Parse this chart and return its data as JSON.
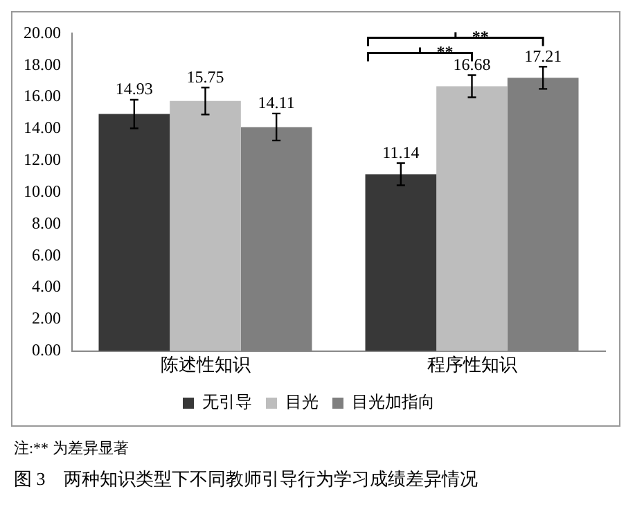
{
  "chart_data": {
    "type": "bar",
    "categories": [
      "陈述性知识",
      "程序性知识"
    ],
    "series": [
      {
        "name": "无引导",
        "color": "#383838",
        "values": [
          14.93,
          11.14
        ],
        "errors": [
          0.9,
          0.7
        ]
      },
      {
        "name": "目光",
        "color": "#bdbdbd",
        "values": [
          15.75,
          16.68
        ],
        "errors": [
          0.85,
          0.7
        ]
      },
      {
        "name": "目光加指向",
        "color": "#7f7f7f",
        "values": [
          14.11,
          17.21
        ],
        "errors": [
          0.85,
          0.7
        ]
      }
    ],
    "ylim": [
      0,
      20
    ],
    "yticks": [
      {
        "value": 0,
        "label": "0.00"
      },
      {
        "value": 2,
        "label": "2.00"
      },
      {
        "value": 4,
        "label": "4.00"
      },
      {
        "value": 6,
        "label": "6.00"
      },
      {
        "value": 8,
        "label": "8.00"
      },
      {
        "value": 10,
        "label": "10.00"
      },
      {
        "value": 12,
        "label": "12.00"
      },
      {
        "value": 14,
        "label": "14.00"
      },
      {
        "value": 16,
        "label": "16.00"
      },
      {
        "value": 18,
        "label": "18.00"
      },
      {
        "value": 20,
        "label": "20.00"
      }
    ],
    "grid": false,
    "legend": "bottom",
    "data_labels": true,
    "annotations": [
      "**",
      "**",
      "注:** 为差异显著",
      "图 3　两种知识类型下不同教师引导行为学习成绩差异情况"
    ]
  }
}
